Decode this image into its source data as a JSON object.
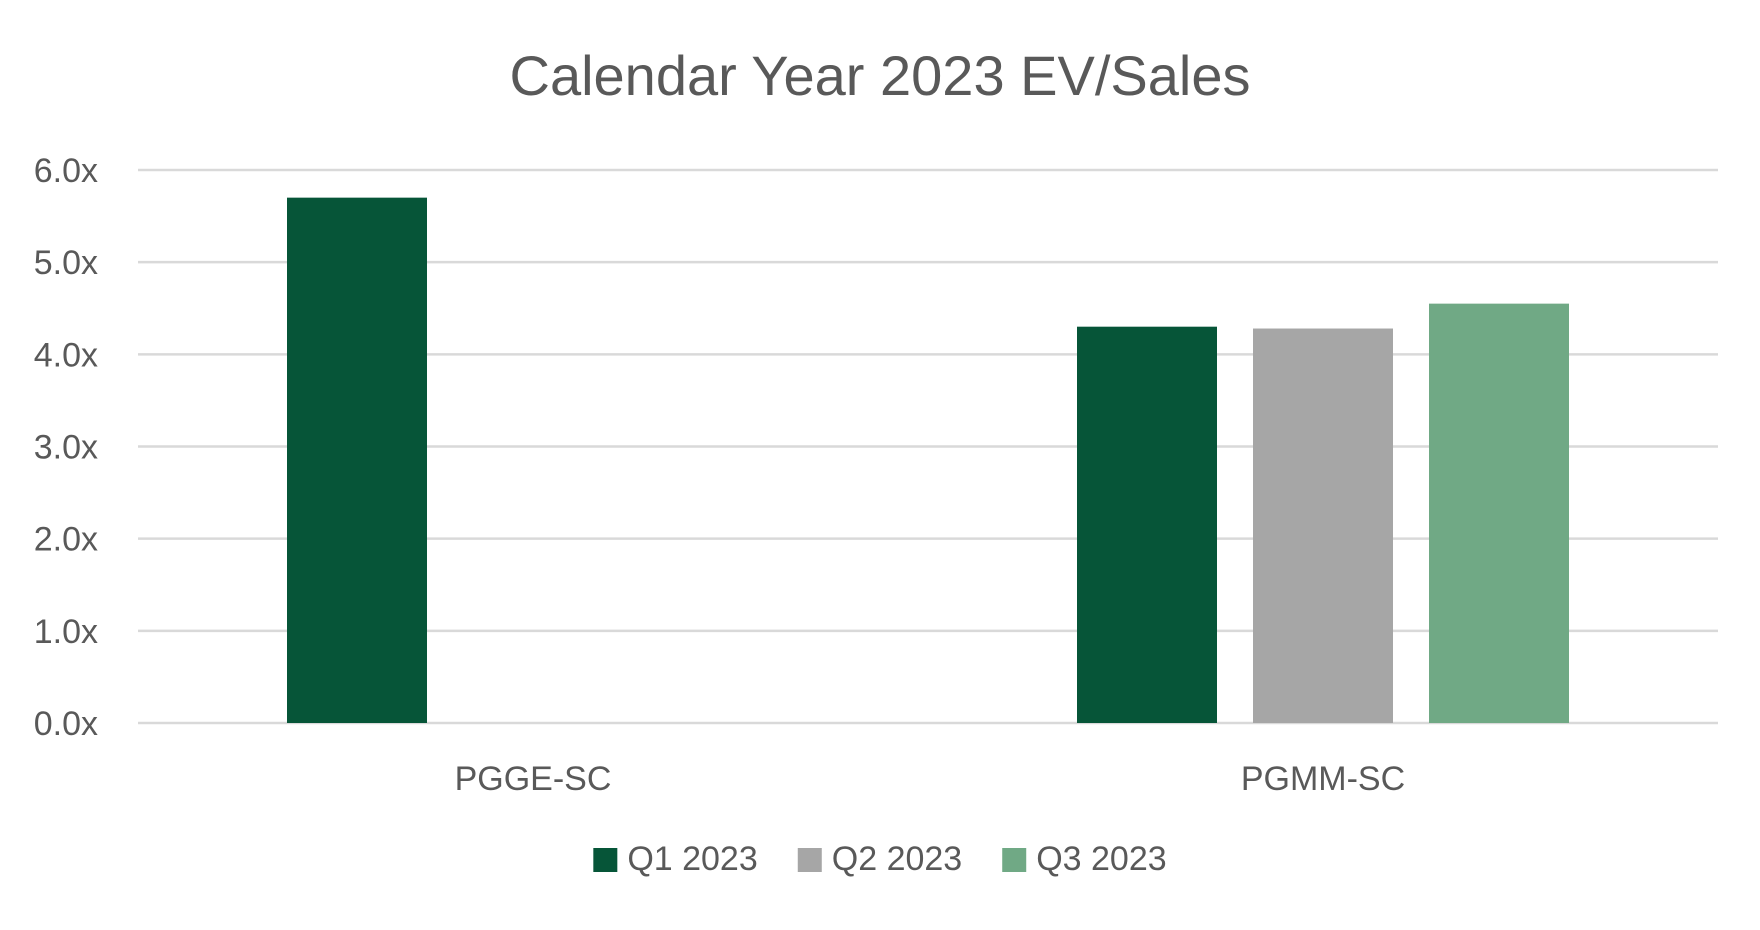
{
  "chart_data": {
    "type": "bar",
    "title": "Calendar Year 2023 EV/Sales",
    "xlabel": "",
    "ylabel": "",
    "categories": [
      "PGGE-SC",
      "PGMM-SC"
    ],
    "series": [
      {
        "name": "Q1 2023",
        "color": "#065538",
        "values": [
          5.7,
          4.3
        ]
      },
      {
        "name": "Q2 2023",
        "color": "#a6a6a6",
        "values": [
          null,
          4.28
        ]
      },
      {
        "name": "Q3 2023",
        "color": "#70a985",
        "values": [
          null,
          4.55
        ]
      }
    ],
    "ylim": [
      0,
      6
    ],
    "yticks": [
      0,
      1,
      2,
      3,
      4,
      5,
      6
    ],
    "ytick_labels": [
      "0.0x",
      "1.0x",
      "2.0x",
      "3.0x",
      "4.0x",
      "5.0x",
      "6.0x"
    ],
    "grid": true,
    "legend": "bottom"
  }
}
